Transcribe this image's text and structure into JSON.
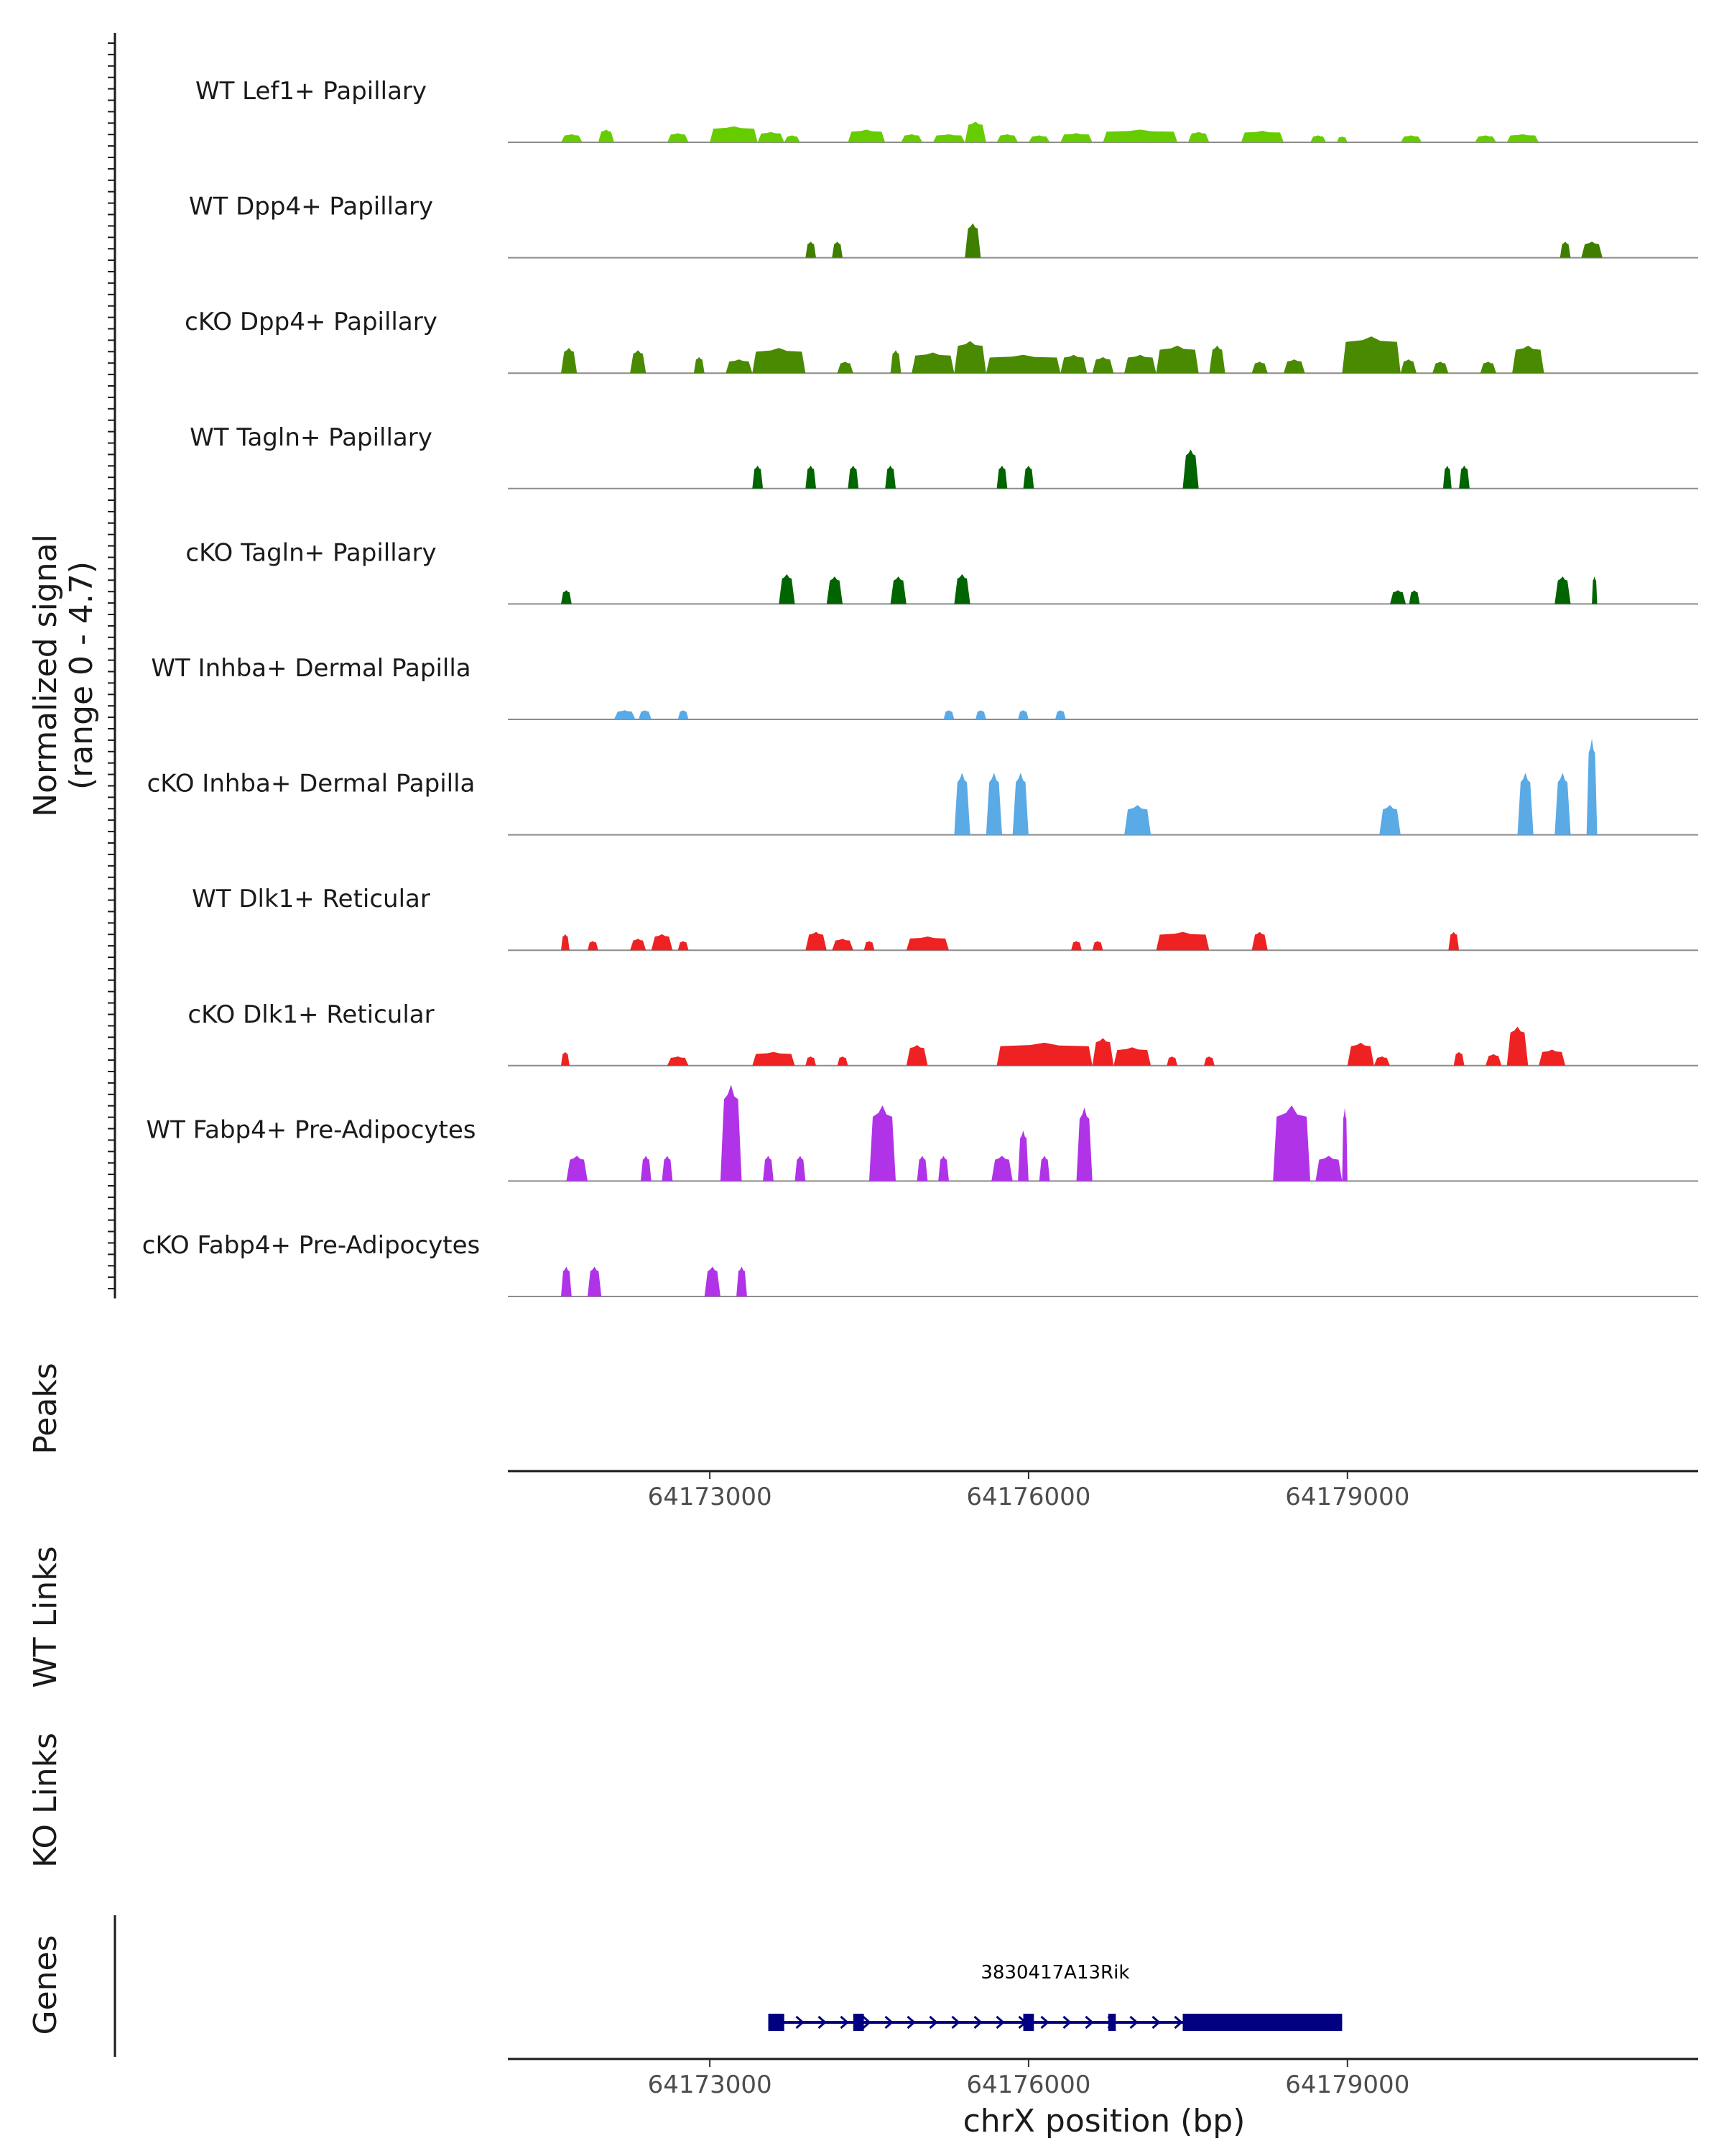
{
  "chart_data": {
    "type": "area",
    "title": "",
    "chromosome": "chrX",
    "xlabel": "chrX position (bp)",
    "ylabel_line1": "Normalized signal",
    "ylabel_line2": "(range 0 - 4.7)",
    "y_range": [
      0,
      4.7
    ],
    "x_range": [
      64171100,
      64182300
    ],
    "x_ticks": [
      64173000,
      64176000,
      64179000
    ],
    "x_tick_labels": [
      "64173000",
      "64176000",
      "64179000"
    ],
    "panel_labels": {
      "peaks": "Peaks",
      "wt_links": "WT Links",
      "ko_links": "KO Links",
      "genes": "Genes"
    },
    "series": [
      {
        "name": "WT Lef1+ Papillary",
        "color": "#66CC00",
        "peaks": [
          [
            64171600,
            64171800,
            0.35
          ],
          [
            64171950,
            64172100,
            0.55
          ],
          [
            64172600,
            64172800,
            0.4
          ],
          [
            64173000,
            64173450,
            0.7
          ],
          [
            64173450,
            64173700,
            0.45
          ],
          [
            64173700,
            64173850,
            0.3
          ],
          [
            64174300,
            64174650,
            0.55
          ],
          [
            64174800,
            64175000,
            0.35
          ],
          [
            64175100,
            64175400,
            0.35
          ],
          [
            64175400,
            64175600,
            0.9
          ],
          [
            64175700,
            64175900,
            0.35
          ],
          [
            64176000,
            64176200,
            0.3
          ],
          [
            64176300,
            64176600,
            0.4
          ],
          [
            64176700,
            64177400,
            0.55
          ],
          [
            64177500,
            64177700,
            0.45
          ],
          [
            64178000,
            64178400,
            0.5
          ],
          [
            64178650,
            64178800,
            0.3
          ],
          [
            64178900,
            64179000,
            0.25
          ],
          [
            64179500,
            64179700,
            0.3
          ],
          [
            64180200,
            64180400,
            0.3
          ],
          [
            64180500,
            64180800,
            0.35
          ]
        ]
      },
      {
        "name": "WT Dpp4+ Papillary",
        "color": "#3F7F00",
        "peaks": [
          [
            64173900,
            64174000,
            0.7
          ],
          [
            64174150,
            64174250,
            0.7
          ],
          [
            64175400,
            64175550,
            1.5
          ],
          [
            64181000,
            64181100,
            0.7
          ],
          [
            64181200,
            64181400,
            0.7
          ]
        ]
      },
      {
        "name": "cKO Dpp4+ Papillary",
        "color": "#4A8A00",
        "peaks": [
          [
            64171600,
            64171750,
            1.1
          ],
          [
            64172250,
            64172400,
            1.0
          ],
          [
            64172850,
            64172950,
            0.7
          ],
          [
            64173150,
            64173400,
            0.6
          ],
          [
            64173400,
            64173900,
            1.1
          ],
          [
            64174200,
            64174350,
            0.5
          ],
          [
            64174700,
            64174800,
            1.0
          ],
          [
            64174900,
            64175300,
            0.9
          ],
          [
            64175300,
            64175600,
            1.4
          ],
          [
            64175600,
            64176300,
            0.8
          ],
          [
            64176300,
            64176550,
            0.8
          ],
          [
            64176600,
            64176800,
            0.7
          ],
          [
            64176900,
            64177200,
            0.8
          ],
          [
            64177200,
            64177600,
            1.2
          ],
          [
            64177700,
            64177850,
            1.2
          ],
          [
            64178100,
            64178250,
            0.5
          ],
          [
            64178400,
            64178600,
            0.6
          ],
          [
            64178950,
            64179500,
            1.6
          ],
          [
            64179500,
            64179650,
            0.6
          ],
          [
            64179800,
            64179950,
            0.5
          ],
          [
            64180250,
            64180400,
            0.5
          ],
          [
            64180550,
            64180850,
            1.2
          ]
        ]
      },
      {
        "name": "WT Tagln+ Papillary",
        "color": "#006400",
        "peaks": [
          [
            64173400,
            64173500,
            1.0
          ],
          [
            64173900,
            64174000,
            1.0
          ],
          [
            64174300,
            64174400,
            1.0
          ],
          [
            64174650,
            64174750,
            1.0
          ],
          [
            64175700,
            64175800,
            1.0
          ],
          [
            64175950,
            64176050,
            1.0
          ],
          [
            64177450,
            64177600,
            1.7
          ],
          [
            64179900,
            64179980,
            1.0
          ],
          [
            64180050,
            64180150,
            1.0
          ]
        ]
      },
      {
        "name": "cKO Tagln+ Papillary",
        "color": "#006400",
        "peaks": [
          [
            64171600,
            64171700,
            0.6
          ],
          [
            64173650,
            64173800,
            1.3
          ],
          [
            64174100,
            64174250,
            1.2
          ],
          [
            64174700,
            64174850,
            1.2
          ],
          [
            64175300,
            64175450,
            1.3
          ],
          [
            64179400,
            64179550,
            0.6
          ],
          [
            64179580,
            64179680,
            0.6
          ],
          [
            64180950,
            64181100,
            1.2
          ],
          [
            64181300,
            64181350,
            1.2
          ]
        ]
      },
      {
        "name": "WT Inhba+ Dermal Papilla",
        "color": "#5AAAE6",
        "peaks": [
          [
            64172100,
            64172300,
            0.4
          ],
          [
            64172330,
            64172450,
            0.4
          ],
          [
            64172700,
            64172800,
            0.4
          ],
          [
            64175200,
            64175300,
            0.4
          ],
          [
            64175500,
            64175600,
            0.4
          ],
          [
            64175900,
            64176000,
            0.4
          ],
          [
            64176250,
            64176350,
            0.4
          ]
        ]
      },
      {
        "name": "cKO Inhba+ Dermal Papilla",
        "color": "#5AAAE6",
        "peaks": [
          [
            64175300,
            64175450,
            2.7
          ],
          [
            64175600,
            64175750,
            2.7
          ],
          [
            64175850,
            64176000,
            2.7
          ],
          [
            64176900,
            64177150,
            1.3
          ],
          [
            64179300,
            64179500,
            1.3
          ],
          [
            64180600,
            64180750,
            2.7
          ],
          [
            64180950,
            64181100,
            2.7
          ],
          [
            64181250,
            64181350,
            4.2
          ]
        ]
      },
      {
        "name": "WT Dlk1+ Reticular",
        "color": "#EE2222",
        "peaks": [
          [
            64171600,
            64171680,
            0.7
          ],
          [
            64171850,
            64171950,
            0.4
          ],
          [
            64172250,
            64172400,
            0.5
          ],
          [
            64172450,
            64172650,
            0.7
          ],
          [
            64172700,
            64172800,
            0.4
          ],
          [
            64173900,
            64174100,
            0.8
          ],
          [
            64174150,
            64174350,
            0.5
          ],
          [
            64174450,
            64174550,
            0.4
          ],
          [
            64174850,
            64175250,
            0.6
          ],
          [
            64176400,
            64176500,
            0.4
          ],
          [
            64176600,
            64176700,
            0.4
          ],
          [
            64177200,
            64177700,
            0.8
          ],
          [
            64178100,
            64178250,
            0.8
          ],
          [
            64179950,
            64180050,
            0.8
          ]
        ]
      },
      {
        "name": "cKO Dlk1+ Reticular",
        "color": "#EE2222",
        "peaks": [
          [
            64171600,
            64171680,
            0.6
          ],
          [
            64172600,
            64172800,
            0.4
          ],
          [
            64173400,
            64173800,
            0.6
          ],
          [
            64173900,
            64174000,
            0.4
          ],
          [
            64174200,
            64174300,
            0.4
          ],
          [
            64174850,
            64175050,
            0.9
          ],
          [
            64175700,
            64176600,
            1.0
          ],
          [
            64176600,
            64176800,
            1.2
          ],
          [
            64176800,
            64177150,
            0.8
          ],
          [
            64177300,
            64177400,
            0.4
          ],
          [
            64177650,
            64177750,
            0.4
          ],
          [
            64179000,
            64179250,
            1.0
          ],
          [
            64179250,
            64179400,
            0.4
          ],
          [
            64180000,
            64180100,
            0.6
          ],
          [
            64180300,
            64180450,
            0.5
          ],
          [
            64180500,
            64180700,
            1.7
          ],
          [
            64180800,
            64181050,
            0.7
          ]
        ]
      },
      {
        "name": "WT Fabp4+ Pre-Adipocytes",
        "color": "#B033E8",
        "peaks": [
          [
            64171650,
            64171850,
            1.1
          ],
          [
            64172350,
            64172450,
            1.1
          ],
          [
            64172550,
            64172650,
            1.1
          ],
          [
            64173100,
            64173300,
            4.2
          ],
          [
            64173500,
            64173600,
            1.1
          ],
          [
            64173800,
            64173900,
            1.1
          ],
          [
            64174500,
            64174750,
            3.3
          ],
          [
            64174950,
            64175050,
            1.1
          ],
          [
            64175150,
            64175250,
            1.1
          ],
          [
            64175650,
            64175850,
            1.1
          ],
          [
            64175900,
            64176000,
            2.2
          ],
          [
            64176100,
            64176200,
            1.1
          ],
          [
            64176450,
            64176600,
            3.2
          ],
          [
            64178300,
            64178650,
            3.3
          ],
          [
            64178700,
            64178950,
            1.1
          ],
          [
            64178950,
            64179000,
            3.2
          ]
        ]
      },
      {
        "name": "cKO Fabp4+ Pre-Adipocytes",
        "color": "#B033E8",
        "peaks": [
          [
            64171600,
            64171700,
            1.3
          ],
          [
            64171850,
            64171980,
            1.3
          ],
          [
            64172950,
            64173100,
            1.3
          ],
          [
            64173250,
            64173350,
            1.3
          ]
        ]
      }
    ],
    "gene": {
      "name": "3830417A13Rik",
      "strand": "+",
      "color": "#000080",
      "start": 64173550,
      "end": 64178950,
      "exons": [
        [
          64173550,
          64173700
        ],
        [
          64174350,
          64174450
        ],
        [
          64175950,
          64176050
        ],
        [
          64176750,
          64176820
        ],
        [
          64177450,
          64178950
        ]
      ]
    }
  }
}
